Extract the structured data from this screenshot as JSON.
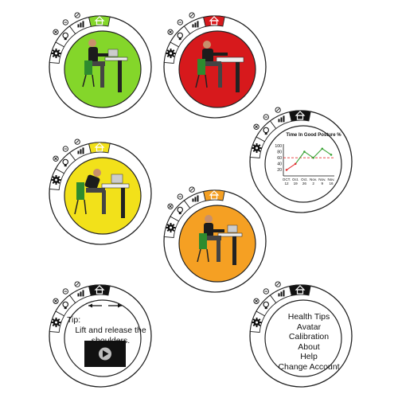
{
  "colors": {
    "green": "#84d62a",
    "red": "#d7191c",
    "yellow": "#f2e11a",
    "orange": "#f5a023",
    "chart_line": "#3aa335",
    "chart_marker_red": "#e33333",
    "chart_threshold": "#e33333"
  },
  "tab_icons": [
    "settings-gear-icon",
    "lightbulb-icon",
    "bar-chart-icon",
    "home-icon"
  ],
  "small_icons": [
    "circle-x-icon",
    "circle-minus-icon",
    "circle-slash-icon"
  ],
  "widgets": [
    {
      "id": "posture-good",
      "state_color": "green"
    },
    {
      "id": "posture-bad",
      "state_color": "red"
    },
    {
      "id": "posture-warning",
      "state_color": "yellow"
    },
    {
      "id": "posture-caution",
      "state_color": "orange"
    }
  ],
  "chart_data": {
    "type": "line",
    "title": "Time In Good Posture %",
    "categories": [
      "Oct. 12",
      "Oct. 19",
      "Oct. 26",
      "Nov. 2",
      "Nov. 9",
      "Nov. 16"
    ],
    "category_lines": [
      [
        "OCT.",
        "12"
      ],
      [
        "Oct.",
        "19"
      ],
      [
        "Oct.",
        "26"
      ],
      [
        "Nov.",
        "2"
      ],
      [
        "Nov.",
        "9"
      ],
      [
        "Nov.",
        "16"
      ]
    ],
    "values": [
      20,
      40,
      80,
      60,
      90,
      70
    ],
    "threshold": 60,
    "ylim": [
      0,
      100
    ],
    "yticks": [
      "100",
      "80",
      "60",
      "40",
      "20"
    ],
    "ytick_values": [
      100,
      80,
      60,
      40,
      20
    ],
    "grid": false
  },
  "tip": {
    "label": "Tip:",
    "text": "Lift and release the shoulders."
  },
  "menu": {
    "items": [
      "Health Tips",
      "Avatar",
      "Calibration",
      "About",
      "Help",
      "Change Account"
    ]
  }
}
